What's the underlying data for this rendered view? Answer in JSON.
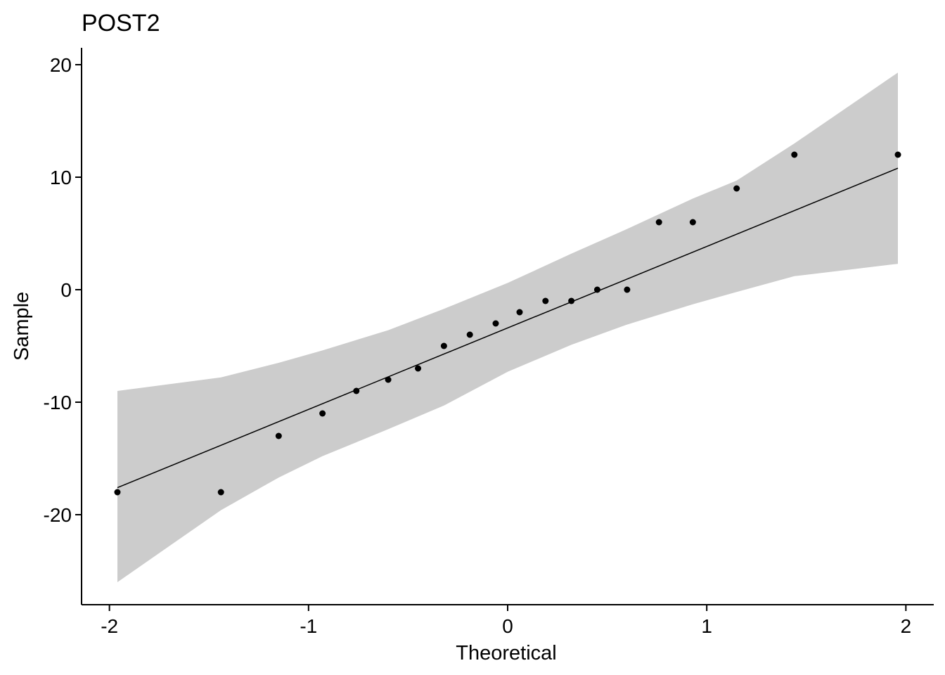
{
  "chart_data": {
    "type": "scatter",
    "title": "POST2",
    "xlabel": "Theoretical",
    "ylabel": "Sample",
    "xlim": [
      -2.14,
      2.14
    ],
    "ylim": [
      -28,
      21.5
    ],
    "grid": false,
    "x_ticks": [
      -2,
      -1,
      0,
      1,
      2
    ],
    "y_ticks": [
      -20,
      -10,
      0,
      10,
      20
    ],
    "x_tick_labels": [
      "-2",
      "-1",
      "0",
      "1",
      "2"
    ],
    "y_tick_labels": [
      "-20",
      "-10",
      "0",
      "10",
      "20"
    ],
    "points": [
      {
        "x": -1.96,
        "y": -18
      },
      {
        "x": -1.44,
        "y": -18
      },
      {
        "x": -1.15,
        "y": -13
      },
      {
        "x": -0.93,
        "y": -11
      },
      {
        "x": -0.76,
        "y": -9
      },
      {
        "x": -0.6,
        "y": -8
      },
      {
        "x": -0.45,
        "y": -7
      },
      {
        "x": -0.32,
        "y": -5
      },
      {
        "x": -0.19,
        "y": -4
      },
      {
        "x": -0.06,
        "y": -3
      },
      {
        "x": 0.06,
        "y": -2
      },
      {
        "x": 0.19,
        "y": -1
      },
      {
        "x": 0.32,
        "y": -1
      },
      {
        "x": 0.45,
        "y": 0
      },
      {
        "x": 0.6,
        "y": 0
      },
      {
        "x": 0.76,
        "y": 6
      },
      {
        "x": 0.93,
        "y": 6
      },
      {
        "x": 1.15,
        "y": 9
      },
      {
        "x": 1.44,
        "y": 12
      },
      {
        "x": 1.96,
        "y": 12
      }
    ],
    "reference_line": {
      "x": [
        -1.96,
        1.96
      ],
      "y": [
        -17.6,
        10.8
      ]
    },
    "confidence_band": {
      "x": [
        -1.96,
        -1.44,
        -1.15,
        -0.93,
        -0.6,
        -0.32,
        0,
        0.32,
        0.6,
        0.93,
        1.15,
        1.44,
        1.96
      ],
      "lower": [
        -26,
        -19.6,
        -16.7,
        -14.8,
        -12.4,
        -10.3,
        -7.3,
        -4.9,
        -3.1,
        -1.3,
        -0.2,
        1.2,
        2.3
      ],
      "upper": [
        -9,
        -7.8,
        -6.5,
        -5.4,
        -3.6,
        -1.7,
        0.6,
        3.2,
        5.4,
        8.1,
        9.7,
        13,
        19.3
      ]
    },
    "colors": {
      "points": "#000000",
      "line": "#000000",
      "band": "#cccccc",
      "axis": "#000000",
      "background": "#ffffff"
    }
  }
}
